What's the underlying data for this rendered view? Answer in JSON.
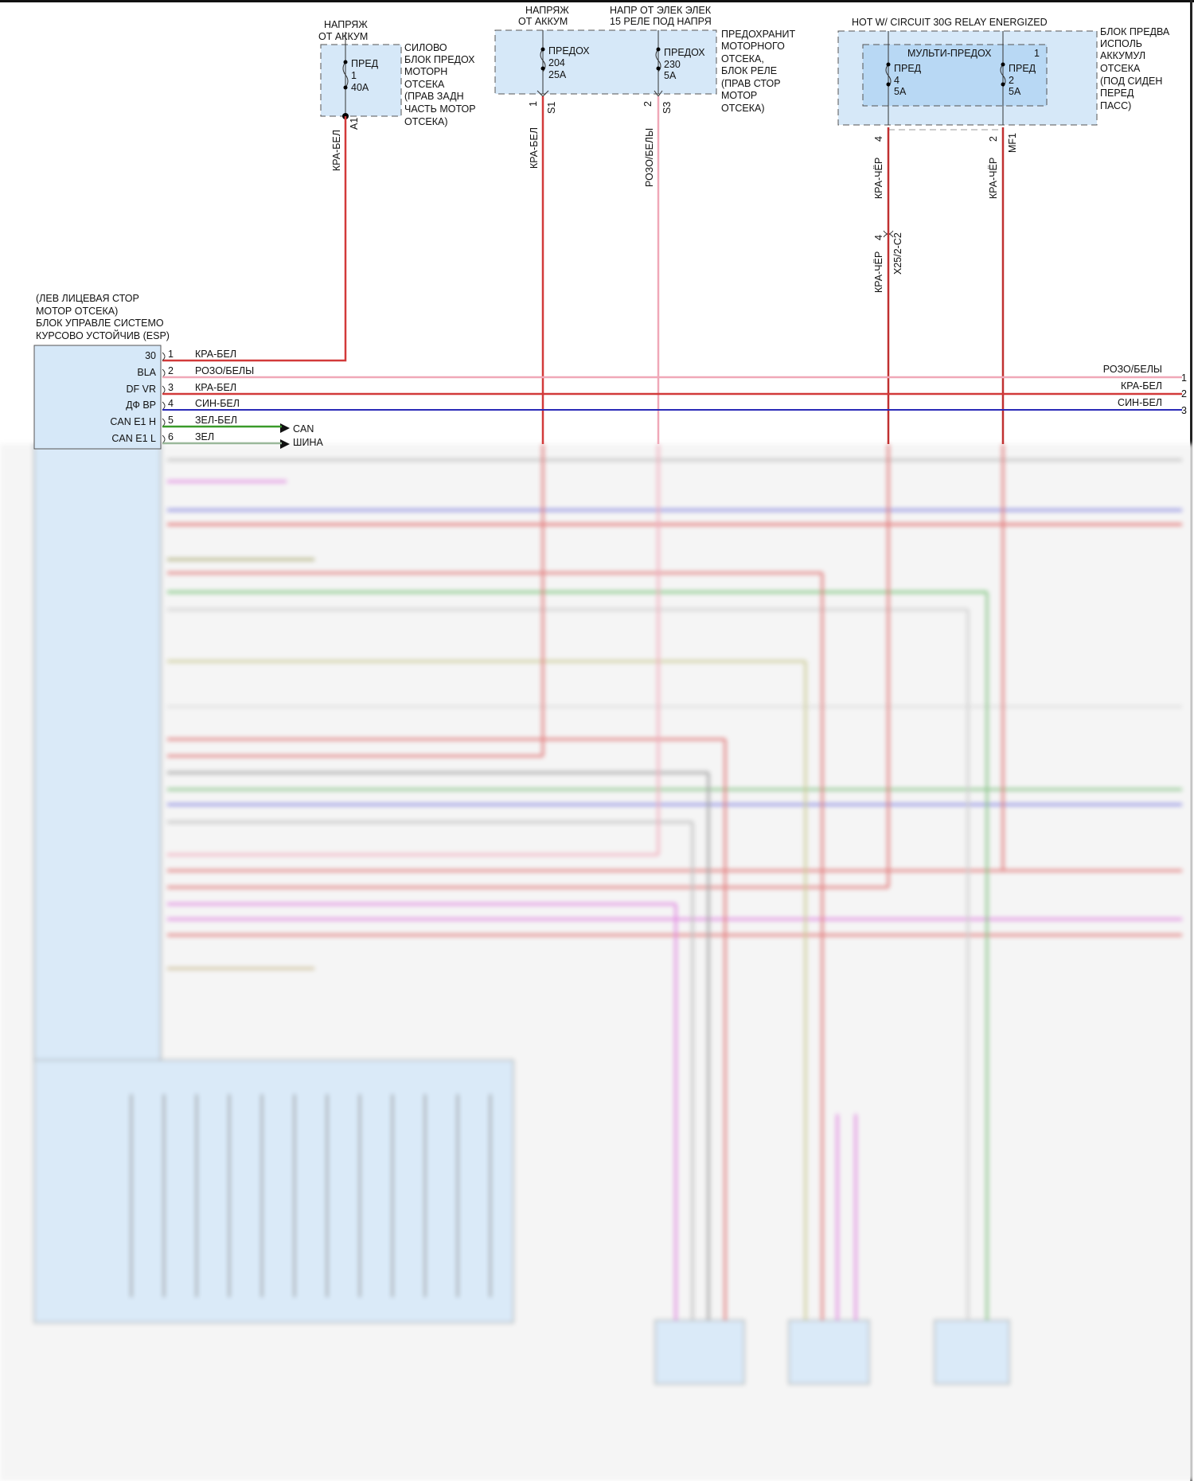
{
  "colors": {
    "red": "#d23a3a",
    "pink": "#f0a8b8",
    "blue": "#2a2ab8",
    "green": "#3a9a2a",
    "box_fill": "#d6e8f8",
    "box_inner_fill": "#b8d8f4"
  },
  "fuse_box_left": {
    "supply": [
      "НАПРЯЖ",
      "ОТ АККУМ"
    ],
    "fuse": [
      "ПРЕД",
      "1",
      "40A"
    ],
    "pin": "A1",
    "description": [
      "СИЛОВО",
      "БЛОК ПРЕДОХ",
      "МОТОРН",
      "ОТСЕКА",
      "(ПРАВ ЗАДН",
      "ЧАСТЬ МОТОР",
      "ОТСЕКА)"
    ],
    "wire": "КРА-БЕЛ"
  },
  "fuse_box_mid": {
    "supply_1": [
      "НАПРЯЖ",
      "ОТ АККУМ"
    ],
    "supply_2": [
      "НАПР ОТ ЭЛЕК ЭЛЕК",
      "15 РЕЛЕ ПОД НАПРЯ"
    ],
    "fuse_1": [
      "ПРЕДОХ",
      "204",
      "25A"
    ],
    "fuse_2": [
      "ПРЕДОХ",
      "230",
      "5A"
    ],
    "pin_1": {
      "num": "1",
      "id": "S1",
      "wire": "КРА-БЕЛ"
    },
    "pin_2": {
      "num": "2",
      "id": "S3",
      "wire": "РОЗО/БЕЛЫ"
    },
    "description": [
      "ПРЕДОХРАНИТ",
      "МОТОРНОГО",
      "ОТСЕКА,",
      "БЛОК РЕЛЕ",
      "(ПРАВ СТОР",
      "МОТОР",
      "ОТСЕКА)"
    ]
  },
  "fuse_box_right": {
    "supply": "HOT W/ CIRCUIT 30G RELAY ENERGIZED",
    "inner_label": [
      "МУЛЬТИ-ПРЕДОХ",
      "1"
    ],
    "fuse_1": [
      "ПРЕД",
      "4",
      "5A"
    ],
    "fuse_2": [
      "ПРЕД",
      "2",
      "5A"
    ],
    "description": [
      "БЛОК ПРЕДВА",
      "ИСПОЛЬ",
      "АККУМУЛ",
      "ОТСЕКА",
      "(ПОД СИДЕН",
      "ПЕРЕД",
      "ПАСС)"
    ],
    "pin_1": {
      "num": "4",
      "wire": "КРА-ЧЁР"
    },
    "pin_2": {
      "num": "2",
      "id": "MF1",
      "wire": "КРА-ЧЁР"
    },
    "connector": {
      "num": "4",
      "id": "X25/2-C2",
      "wire": "КРА-ЧЁР"
    }
  },
  "esp_module": {
    "title": [
      "(ЛЕВ ЛИЦЕВАЯ СТОР",
      "МОТОР ОТСЕКА)",
      "БЛОК УПРАВЛЕ СИСТЕМО",
      "КУРСОВО УСТОЙЧИВ (ESP)"
    ],
    "pins": [
      {
        "name": "30",
        "num": "1",
        "wire": "КРА-БЕЛ"
      },
      {
        "name": "BLA",
        "num": "2",
        "wire": "РОЗО/БЕЛЫ"
      },
      {
        "name": "DF VR",
        "num": "3",
        "wire": "КРА-БЕЛ"
      },
      {
        "name": "ДФ ВР",
        "num": "4",
        "wire": "СИН-БЕЛ"
      },
      {
        "name": "CAN E1 H",
        "num": "5",
        "wire": "ЗЕЛ-БЕЛ"
      },
      {
        "name": "CAN E1 L",
        "num": "6",
        "wire": "ЗЕЛ"
      }
    ],
    "can_label": [
      "CAN",
      "ШИНА"
    ]
  },
  "right_outputs": [
    {
      "wire": "РОЗО/БЕЛЫ",
      "num": "1"
    },
    {
      "wire": "КРА-БЕЛ",
      "num": "2"
    },
    {
      "wire": "СИН-БЕЛ",
      "num": "3"
    }
  ]
}
